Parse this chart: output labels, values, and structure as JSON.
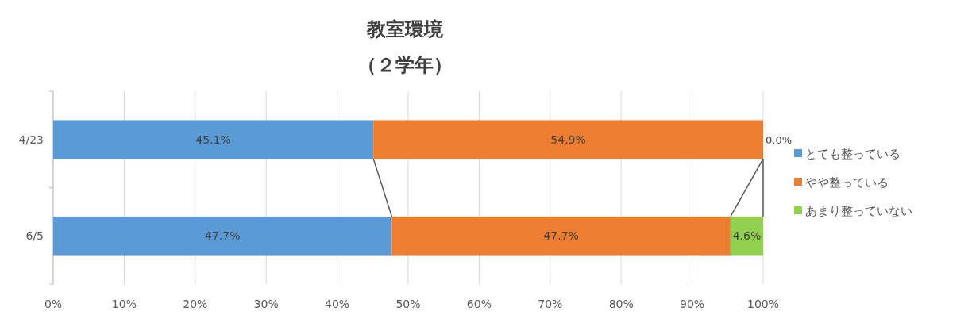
{
  "chart_data": {
    "type": "bar",
    "orientation": "horizontal",
    "stacked": true,
    "title": "教室環境",
    "subtitle": "（２学年）",
    "categories": [
      "4/23",
      "6/5"
    ],
    "series": [
      {
        "name": "とても整っている",
        "color": "#5b9bd5",
        "values": [
          45.1,
          47.7
        ],
        "value_labels": [
          "45.1%",
          "47.7%"
        ]
      },
      {
        "name": "やや整っている",
        "color": "#ed7d31",
        "values": [
          54.9,
          47.7
        ],
        "value_labels": [
          "54.9%",
          "47.7%"
        ]
      },
      {
        "name": "あまり整っていない",
        "color": "#92d050",
        "values": [
          0.0,
          4.6
        ],
        "value_labels": [
          "0.0%",
          "4.6%"
        ]
      }
    ],
    "xlim": [
      0,
      100
    ],
    "xticks": [
      {
        "value": 0,
        "label": "0%"
      },
      {
        "value": 10,
        "label": "10%"
      },
      {
        "value": 20,
        "label": "20%"
      },
      {
        "value": 30,
        "label": "30%"
      },
      {
        "value": 40,
        "label": "40%"
      },
      {
        "value": 50,
        "label": "50%"
      },
      {
        "value": 60,
        "label": "60%"
      },
      {
        "value": 70,
        "label": "70%"
      },
      {
        "value": 80,
        "label": "80%"
      },
      {
        "value": 90,
        "label": "90%"
      },
      {
        "value": 100,
        "label": "100%"
      }
    ],
    "grid": "x",
    "legend": "right"
  }
}
